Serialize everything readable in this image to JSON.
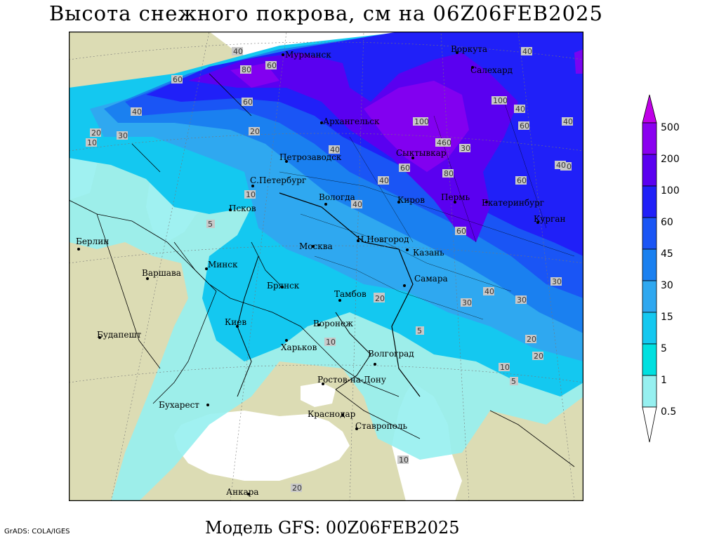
{
  "header": {
    "title": "Высота снежного покрова, см на 06Z06FEB2025"
  },
  "footer": {
    "model": "Модель GFS: 00Z06FEB2025",
    "credit": "GrADS: COLA/IGES"
  },
  "legend": {
    "levels": [
      "500",
      "200",
      "100",
      "60",
      "45",
      "30",
      "15",
      "5",
      "1",
      "0.5"
    ],
    "colors": [
      "#c000e8",
      "#8a00f0",
      "#5a00f0",
      "#2020f8",
      "#1a55f5",
      "#1a80f0",
      "#2fa8f0",
      "#14c8f0",
      "#00e0e0",
      "#96f0f0"
    ]
  },
  "map": {
    "cities": [
      {
        "name": "Мурманск"
      },
      {
        "name": "Воркута"
      },
      {
        "name": "Салехард"
      },
      {
        "name": "Архангельск"
      },
      {
        "name": "Сыктывкар"
      },
      {
        "name": "Петрозаводск"
      },
      {
        "name": "С.Петербург"
      },
      {
        "name": "Вологда"
      },
      {
        "name": "Киров"
      },
      {
        "name": "Пермь"
      },
      {
        "name": "Екатеринбург"
      },
      {
        "name": "Курган"
      },
      {
        "name": "Псков"
      },
      {
        "name": "Н.Новгород"
      },
      {
        "name": "Казань"
      },
      {
        "name": "Берлин"
      },
      {
        "name": "Москва"
      },
      {
        "name": "Минск"
      },
      {
        "name": "Варшава"
      },
      {
        "name": "Брянск"
      },
      {
        "name": "Тамбов"
      },
      {
        "name": "Самара"
      },
      {
        "name": "Киев"
      },
      {
        "name": "Воронеж"
      },
      {
        "name": "Будапешт"
      },
      {
        "name": "Харьков"
      },
      {
        "name": "Волгоград"
      },
      {
        "name": "Ростов-на-Дону"
      },
      {
        "name": "Бухарест"
      },
      {
        "name": "Краснодар"
      },
      {
        "name": "Ставрополь"
      },
      {
        "name": "Анкара"
      }
    ],
    "contour_labels": [
      "40",
      "60",
      "80",
      "60",
      "40",
      "100",
      "40",
      "100",
      "60",
      "40",
      "60",
      "40",
      "20",
      "30",
      "10",
      "20",
      "40",
      "460",
      "60",
      "40",
      "30",
      "60",
      "40",
      "80",
      "60",
      "20",
      "30",
      "40",
      "5",
      "10",
      "30",
      "20",
      "30",
      "10",
      "20",
      "5",
      "10",
      "10",
      "20",
      "5",
      "40",
      "40",
      "20"
    ]
  }
}
